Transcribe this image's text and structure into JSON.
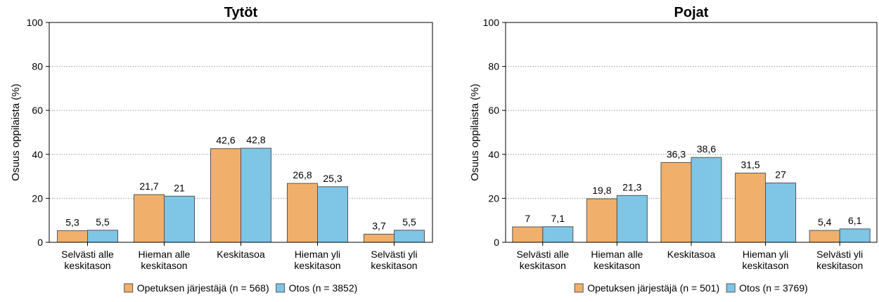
{
  "chart_data": [
    {
      "type": "bar",
      "title": "Tytöt",
      "ylabel": "Osuus oppilaista (%)",
      "ylim": [
        0,
        100
      ],
      "yticks": [
        0,
        20,
        40,
        60,
        80,
        100
      ],
      "grid": "horizontal dotted",
      "legend_position": "bottom",
      "categories": [
        [
          "Selvästi alle",
          "keskitason"
        ],
        [
          "Hieman alle",
          "keskitason"
        ],
        [
          "Keskitasoa"
        ],
        [
          "Hieman yli",
          "keskitason"
        ],
        [
          "Selvästi yli",
          "keskitason"
        ]
      ],
      "series": [
        {
          "name": "Opetuksen järjestäjä (n = 568)",
          "color": "#f0b06c",
          "values": [
            5.3,
            21.7,
            42.6,
            26.8,
            3.7
          ],
          "labels": [
            "5,3",
            "21,7",
            "42,6",
            "26,8",
            "3,7"
          ]
        },
        {
          "name": "Otos (n = 3852)",
          "color": "#7ec5e6",
          "values": [
            5.5,
            21,
            42.8,
            25.3,
            5.5
          ],
          "labels": [
            "5,5",
            "21",
            "42,8",
            "25,3",
            "5,5"
          ]
        }
      ]
    },
    {
      "type": "bar",
      "title": "Pojat",
      "ylabel": "Osuus oppilaista (%)",
      "ylim": [
        0,
        100
      ],
      "yticks": [
        0,
        20,
        40,
        60,
        80,
        100
      ],
      "grid": "horizontal dotted",
      "legend_position": "bottom",
      "categories": [
        [
          "Selvästi alle",
          "keskitason"
        ],
        [
          "Hieman alle",
          "keskitason"
        ],
        [
          "Keskitasoa"
        ],
        [
          "Hieman yli",
          "keskitason"
        ],
        [
          "Selvästi yli",
          "keskitason"
        ]
      ],
      "series": [
        {
          "name": "Opetuksen järjestäjä (n = 501)",
          "color": "#f0b06c",
          "values": [
            7,
            19.8,
            36.3,
            31.5,
            5.4
          ],
          "labels": [
            "7",
            "19,8",
            "36,3",
            "31,5",
            "5,4"
          ]
        },
        {
          "name": "Otos (n = 3769)",
          "color": "#7ec5e6",
          "values": [
            7.1,
            21.3,
            38.6,
            27,
            6.1
          ],
          "labels": [
            "7,1",
            "21,3",
            "38,6",
            "27",
            "6,1"
          ]
        }
      ]
    }
  ]
}
